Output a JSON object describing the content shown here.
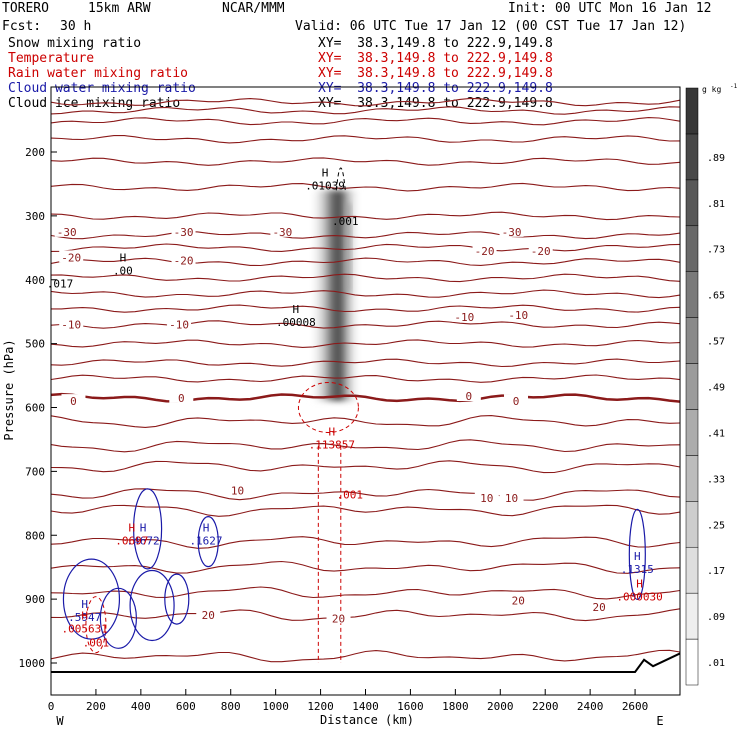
{
  "header": {
    "model": "TORERO",
    "resolution": "15km ARW",
    "org": "NCAR/MMM",
    "init": "Init: 00 UTC Mon 16 Jan 12",
    "fcst_label": "Fcst:",
    "fcst_value": "30 h",
    "valid": "Valid: 06 UTC Tue 17 Jan 12 (00 CST Tue 17 Jan 12)",
    "cross_section": "XY=  38.3,149.8 to 222.9,149.8"
  },
  "fields": [
    {
      "name": "Snow mixing ratio",
      "color": "#000000"
    },
    {
      "name": "Temperature",
      "color": "#cc0000"
    },
    {
      "name": "Rain water mixing ratio",
      "color": "#cc0000"
    },
    {
      "name": "Cloud water mixing ratio",
      "color": "#1a1aa8"
    },
    {
      "name": "Cloud ice mixing ratio",
      "color": "#000000"
    }
  ],
  "chart_data": {
    "type": "contour-cross-section",
    "xlabel": "Distance (km)",
    "ylabel": "Pressure (hPa)",
    "xlim": [
      0,
      2800
    ],
    "ylim": [
      1050,
      100
    ],
    "x_ticks": [
      0,
      200,
      400,
      600,
      800,
      1000,
      1200,
      1400,
      1600,
      1800,
      2000,
      2200,
      2400,
      2600
    ],
    "y_ticks": [
      200,
      300,
      400,
      500,
      600,
      700,
      800,
      900,
      1000
    ],
    "left_end": "W",
    "right_end": "E",
    "colorbar": {
      "units": "g kg",
      "units_exp": "-1",
      "levels": [
        ".01",
        ".09",
        ".17",
        ".25",
        ".33",
        ".41",
        ".49",
        ".57",
        ".65",
        ".73",
        ".81",
        ".89"
      ]
    },
    "temperature_labels": [
      {
        "x": 70,
        "p": 325,
        "text": "-30"
      },
      {
        "x": 590,
        "p": 325,
        "text": "-30"
      },
      {
        "x": 1030,
        "p": 325,
        "text": "-30"
      },
      {
        "x": 2050,
        "p": 325,
        "text": "-30"
      },
      {
        "x": 90,
        "p": 365,
        "text": "-20"
      },
      {
        "x": 590,
        "p": 370,
        "text": "-20"
      },
      {
        "x": 1930,
        "p": 355,
        "text": "-20"
      },
      {
        "x": 2180,
        "p": 355,
        "text": "-20"
      },
      {
        "x": 90,
        "p": 470,
        "text": "-10"
      },
      {
        "x": 570,
        "p": 470,
        "text": "-10"
      },
      {
        "x": 1840,
        "p": 458,
        "text": "-10"
      },
      {
        "x": 2080,
        "p": 455,
        "text": "-10"
      },
      {
        "x": 100,
        "p": 590,
        "text": "0"
      },
      {
        "x": 580,
        "p": 585,
        "text": "0"
      },
      {
        "x": 1860,
        "p": 582,
        "text": "0"
      },
      {
        "x": 2070,
        "p": 590,
        "text": "0"
      },
      {
        "x": 830,
        "p": 730,
        "text": "10"
      },
      {
        "x": 1940,
        "p": 742,
        "text": "10"
      },
      {
        "x": 2050,
        "p": 742,
        "text": "10"
      },
      {
        "x": 700,
        "p": 925,
        "text": "20"
      },
      {
        "x": 1280,
        "p": 930,
        "text": "20"
      },
      {
        "x": 2080,
        "p": 902,
        "text": "20"
      },
      {
        "x": 2440,
        "p": 912,
        "text": "20"
      }
    ],
    "temperature_isotherms_p": [
      122,
      135,
      152,
      180,
      215,
      255,
      300,
      330,
      350,
      372,
      397,
      422,
      445,
      470,
      500,
      530,
      555,
      585,
      622,
      660,
      692,
      735,
      760,
      810,
      850,
      890,
      925,
      990
    ],
    "freezing_level_p": 585,
    "extrema": [
      {
        "x": 1220,
        "p": 245,
        "letter": "H",
        "value": ".01039",
        "color": "#000000"
      },
      {
        "x": 1310,
        "p": 300,
        "letter": "",
        "value": ".001",
        "color": "#000000"
      },
      {
        "x": 320,
        "p": 378,
        "letter": "H",
        "value": ".00",
        "color": "#000000"
      },
      {
        "x": 40,
        "p": 398,
        "letter": "",
        "value": ".017",
        "color": "#000000"
      },
      {
        "x": 1090,
        "p": 458,
        "letter": "H",
        "value": ".00008",
        "color": "#000000"
      },
      {
        "x": 1250,
        "p": 650,
        "letter": "H",
        "value": ".113857",
        "color": "#cc0000"
      },
      {
        "x": 1330,
        "p": 728,
        "letter": "",
        "value": ".001",
        "color": "#cc0000"
      },
      {
        "x": 410,
        "p": 800,
        "letter": "H",
        "value": ".4672",
        "color": "#1a1aa8"
      },
      {
        "x": 360,
        "p": 800,
        "letter": "H",
        "value": ".0697",
        "color": "#cc0000"
      },
      {
        "x": 690,
        "p": 800,
        "letter": "H",
        "value": ".1627",
        "color": "#1a1aa8"
      },
      {
        "x": 2610,
        "p": 845,
        "letter": "H",
        "value": ".1315",
        "color": "#1a1aa8"
      },
      {
        "x": 2620,
        "p": 888,
        "letter": "H",
        "value": ".000030",
        "color": "#cc0000"
      },
      {
        "x": 150,
        "p": 920,
        "letter": "H",
        "value": ".5947",
        "color": "#1a1aa8"
      },
      {
        "x": 150,
        "p": 938,
        "letter": "H",
        "value": ".005631",
        "color": "#cc0000"
      },
      {
        "x": 200,
        "p": 960,
        "letter": "",
        "value": ".001",
        "color": "#cc0000"
      }
    ]
  }
}
